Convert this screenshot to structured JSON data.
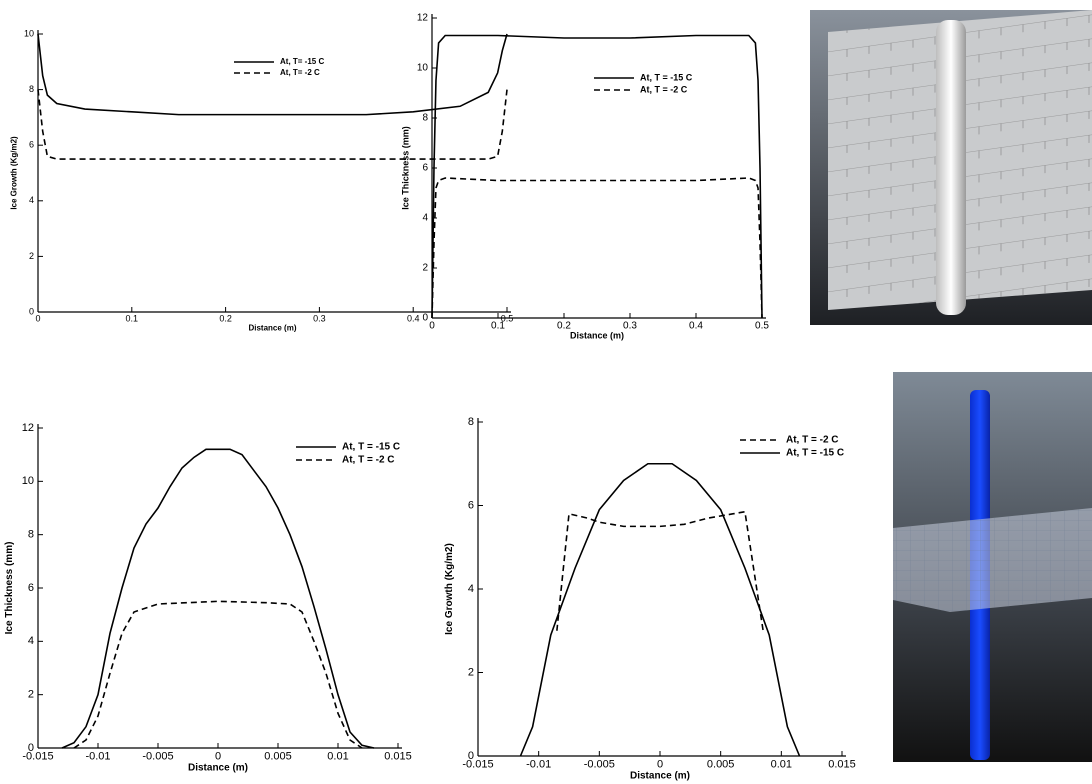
{
  "chart_data": [
    {
      "type": "line",
      "ylabel": "Ice Growth (Kg/m2)",
      "xlabel": "Distance (m)",
      "xlim": [
        0,
        0.5
      ],
      "xticks": [
        0,
        0.1,
        0.2,
        0.3,
        0.4,
        0.5
      ],
      "ylim": [
        0,
        10
      ],
      "yticks": [
        0,
        2,
        4,
        6,
        8,
        10
      ],
      "grid": false,
      "series": [
        {
          "name": "At, T= -15 C",
          "color": "#000000",
          "style": "solid",
          "x": [
            0,
            0.005,
            0.01,
            0.02,
            0.05,
            0.1,
            0.15,
            0.2,
            0.25,
            0.3,
            0.35,
            0.4,
            0.45,
            0.48,
            0.49,
            0.495,
            0.5
          ],
          "values": [
            10,
            8.5,
            7.8,
            7.5,
            7.3,
            7.2,
            7.1,
            7.1,
            7.1,
            7.1,
            7.1,
            7.2,
            7.4,
            7.9,
            8.6,
            9.4,
            10
          ]
        },
        {
          "name": "At, T= -2 C",
          "color": "#000000",
          "style": "dashed",
          "x": [
            0,
            0.005,
            0.01,
            0.02,
            0.1,
            0.2,
            0.3,
            0.4,
            0.48,
            0.49,
            0.495,
            0.5
          ],
          "values": [
            8,
            6.5,
            5.6,
            5.5,
            5.5,
            5.5,
            5.5,
            5.5,
            5.5,
            5.6,
            6.5,
            8
          ]
        }
      ]
    },
    {
      "type": "line",
      "ylabel": "Ice Thickness (mm)",
      "xlabel": "Distance (m)",
      "xlim": [
        0,
        0.5
      ],
      "xticks": [
        0,
        0.1,
        0.2,
        0.3,
        0.4,
        0.5
      ],
      "ylim": [
        0,
        12
      ],
      "yticks": [
        0,
        2,
        4,
        6,
        8,
        10,
        12
      ],
      "grid": false,
      "series": [
        {
          "name": "At, T = -15 C",
          "color": "#000000",
          "style": "solid",
          "x": [
            0,
            0.003,
            0.006,
            0.01,
            0.02,
            0.1,
            0.2,
            0.3,
            0.4,
            0.48,
            0.49,
            0.494,
            0.497,
            0.5
          ],
          "values": [
            0,
            6,
            9.5,
            11,
            11.3,
            11.3,
            11.2,
            11.2,
            11.3,
            11.3,
            11,
            9.5,
            6,
            0
          ]
        },
        {
          "name": "At, T = -2 C",
          "color": "#000000",
          "style": "dashed",
          "x": [
            0,
            0.003,
            0.006,
            0.01,
            0.02,
            0.1,
            0.2,
            0.3,
            0.4,
            0.48,
            0.49,
            0.494,
            0.497,
            0.5
          ],
          "values": [
            0,
            3,
            5.2,
            5.5,
            5.6,
            5.5,
            5.5,
            5.5,
            5.5,
            5.6,
            5.5,
            5.2,
            3,
            0
          ]
        }
      ]
    },
    {
      "type": "line",
      "ylabel": "Ice Thickness (mm)",
      "xlabel": "Distance (m)",
      "xlim": [
        -0.015,
        0.015
      ],
      "xticks": [
        -0.015,
        -0.01,
        -0.005,
        0,
        0.005,
        0.01,
        0.015
      ],
      "ylim": [
        0,
        12
      ],
      "yticks": [
        0,
        2,
        4,
        6,
        8,
        10,
        12
      ],
      "grid": false,
      "series": [
        {
          "name": "At, T = -15 C",
          "color": "#000000",
          "style": "solid",
          "x": [
            -0.013,
            -0.012,
            -0.011,
            -0.01,
            -0.009,
            -0.008,
            -0.007,
            -0.006,
            -0.005,
            -0.004,
            -0.003,
            -0.002,
            -0.001,
            0,
            0.001,
            0.002,
            0.003,
            0.004,
            0.005,
            0.006,
            0.007,
            0.008,
            0.009,
            0.01,
            0.011,
            0.012,
            0.013
          ],
          "values": [
            0,
            0.2,
            0.8,
            2,
            4.3,
            6,
            7.5,
            8.4,
            9,
            9.8,
            10.5,
            10.9,
            11.2,
            11.2,
            11.2,
            11,
            10.4,
            9.8,
            9,
            8,
            6.8,
            5.3,
            3.7,
            2,
            0.6,
            0.1,
            0
          ]
        },
        {
          "name": "At, T = -2 C",
          "color": "#000000",
          "style": "dashed",
          "x": [
            -0.012,
            -0.011,
            -0.01,
            -0.009,
            -0.008,
            -0.007,
            -0.005,
            0,
            0.004,
            0.006,
            0.007,
            0.008,
            0.009,
            0.01,
            0.011,
            0.012
          ],
          "values": [
            0,
            0.3,
            1.2,
            2.8,
            4.3,
            5.1,
            5.4,
            5.5,
            5.45,
            5.4,
            5.1,
            4,
            2.8,
            1.3,
            0.3,
            0
          ]
        }
      ]
    },
    {
      "type": "line",
      "ylabel": "Ice Growth (Kg/m2)",
      "xlabel": "Distance (m)",
      "xlim": [
        -0.015,
        0.015
      ],
      "xticks": [
        -0.015,
        -0.01,
        -0.005,
        0,
        0.005,
        0.01,
        0.015
      ],
      "ylim": [
        0,
        8
      ],
      "yticks": [
        0,
        2,
        4,
        6,
        8
      ],
      "grid": false,
      "series": [
        {
          "name": "At, T = -2 C",
          "color": "#000000",
          "style": "dashed",
          "x": [
            -0.0085,
            -0.0075,
            -0.006,
            -0.005,
            -0.003,
            0,
            0.002,
            0.004,
            0.006,
            0.007,
            0.0085
          ],
          "values": [
            3,
            5.8,
            5.7,
            5.6,
            5.5,
            5.5,
            5.55,
            5.7,
            5.8,
            5.85,
            3
          ]
        },
        {
          "name": "At, T = -15 C",
          "color": "#000000",
          "style": "solid",
          "x": [
            -0.0115,
            -0.0105,
            -0.009,
            -0.007,
            -0.005,
            -0.003,
            -0.001,
            0.001,
            0.003,
            0.005,
            0.007,
            0.009,
            0.0105,
            0.0115
          ],
          "values": [
            0,
            0.7,
            2.9,
            4.5,
            5.9,
            6.6,
            7,
            7,
            6.6,
            5.9,
            4.5,
            2.9,
            0.7,
            0
          ]
        }
      ]
    }
  ]
}
